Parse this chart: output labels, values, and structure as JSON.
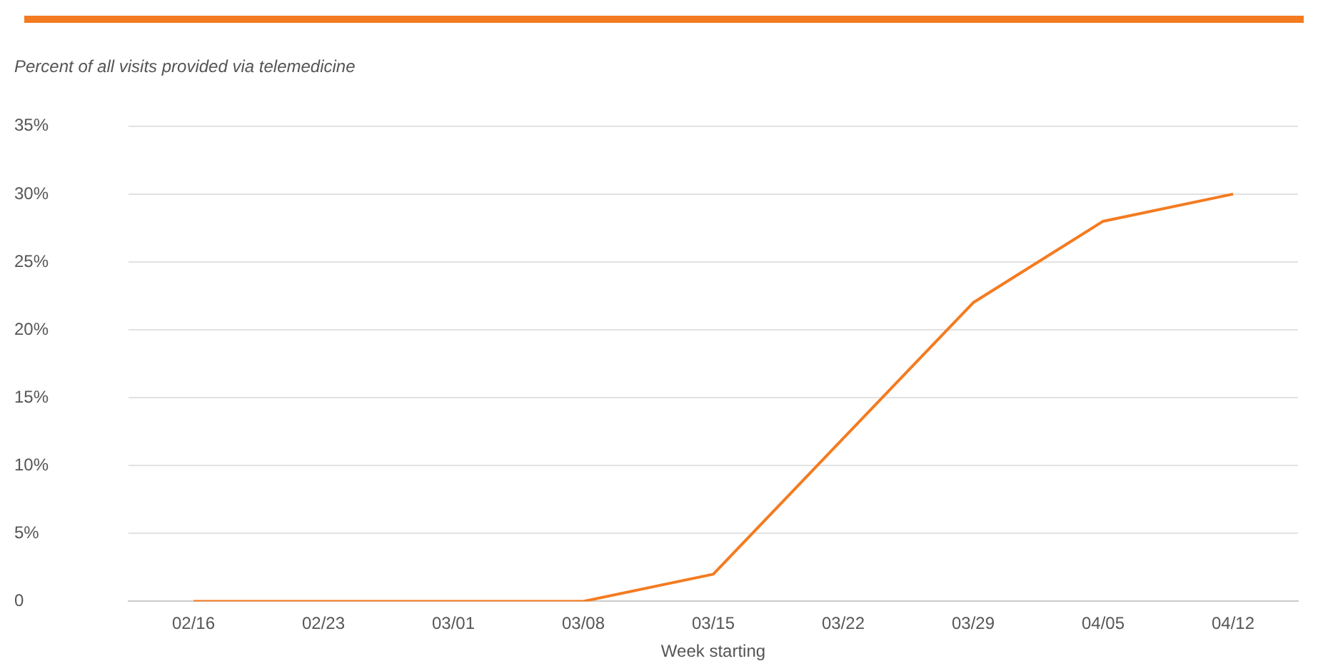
{
  "chart_data": {
    "type": "line",
    "title": "Percent of all visits provided via telemedicine",
    "xlabel": "Week starting",
    "categories": [
      "02/16",
      "02/23",
      "03/01",
      "03/08",
      "03/15",
      "03/22",
      "03/29",
      "04/05",
      "04/12"
    ],
    "series": [
      {
        "color": "#f47b20",
        "values": [
          0,
          0,
          0,
          0,
          2,
          12,
          22,
          28,
          30
        ]
      }
    ],
    "ylim": [
      0,
      35
    ],
    "yticks": [
      {
        "value": 0,
        "label": "0"
      },
      {
        "value": 5,
        "label": "5%"
      },
      {
        "value": 10,
        "label": "10%"
      },
      {
        "value": 15,
        "label": "15%"
      },
      {
        "value": 20,
        "label": "20%"
      },
      {
        "value": 25,
        "label": "25%"
      },
      {
        "value": 30,
        "label": "30%"
      },
      {
        "value": 35,
        "label": "35%"
      }
    ],
    "grid": "y",
    "legend": false,
    "marker": "none",
    "line_style": "solid"
  }
}
